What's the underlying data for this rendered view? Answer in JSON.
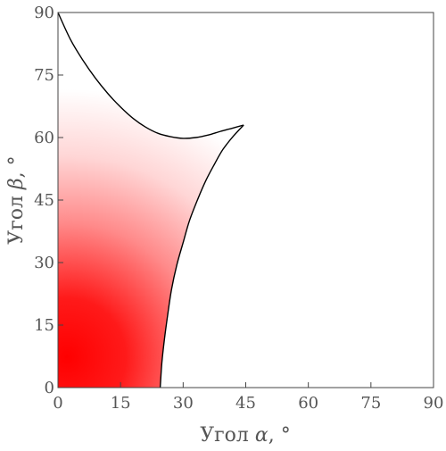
{
  "chart_data": {
    "type": "area",
    "title": "",
    "xlabel": {
      "prefix": "Угол",
      "symbol": "α",
      "suffix": ", °"
    },
    "ylabel": {
      "prefix": "Угол",
      "symbol": "β",
      "suffix": ", °"
    },
    "xlim": [
      0,
      90
    ],
    "ylim": [
      0,
      90
    ],
    "xticks": [
      "0",
      "15",
      "30",
      "45",
      "60",
      "75",
      "90"
    ],
    "yticks": [
      "0",
      "15",
      "30",
      "45",
      "60",
      "75",
      "90"
    ],
    "grid": false,
    "fill_color_start": "#ff0000",
    "fill_color_end": "#ffffff",
    "border_color": "#000000",
    "region": {
      "upper_boundary": [
        [
          0,
          90
        ],
        [
          3,
          83.5
        ],
        [
          6,
          78.5
        ],
        [
          9,
          74.2
        ],
        [
          12,
          70.5
        ],
        [
          15,
          67.3
        ],
        [
          18,
          64.6
        ],
        [
          21,
          62.5
        ],
        [
          24,
          61
        ],
        [
          27,
          60.2
        ],
        [
          30,
          59.8
        ],
        [
          33,
          60
        ],
        [
          36,
          60.6
        ],
        [
          39,
          61.5
        ],
        [
          42,
          62.3
        ],
        [
          44.5,
          63
        ]
      ],
      "right_boundary": [
        [
          44.5,
          63
        ],
        [
          42,
          60.3
        ],
        [
          39.5,
          57.1
        ],
        [
          37.5,
          53.6
        ],
        [
          35.5,
          49.8
        ],
        [
          33.5,
          45.2
        ],
        [
          31.5,
          40
        ],
        [
          30,
          34.8
        ],
        [
          28.5,
          29.5
        ],
        [
          27.2,
          23.5
        ],
        [
          26.3,
          17.5
        ],
        [
          25.5,
          11.5
        ],
        [
          24.9,
          6
        ],
        [
          24.5,
          0
        ]
      ]
    }
  }
}
